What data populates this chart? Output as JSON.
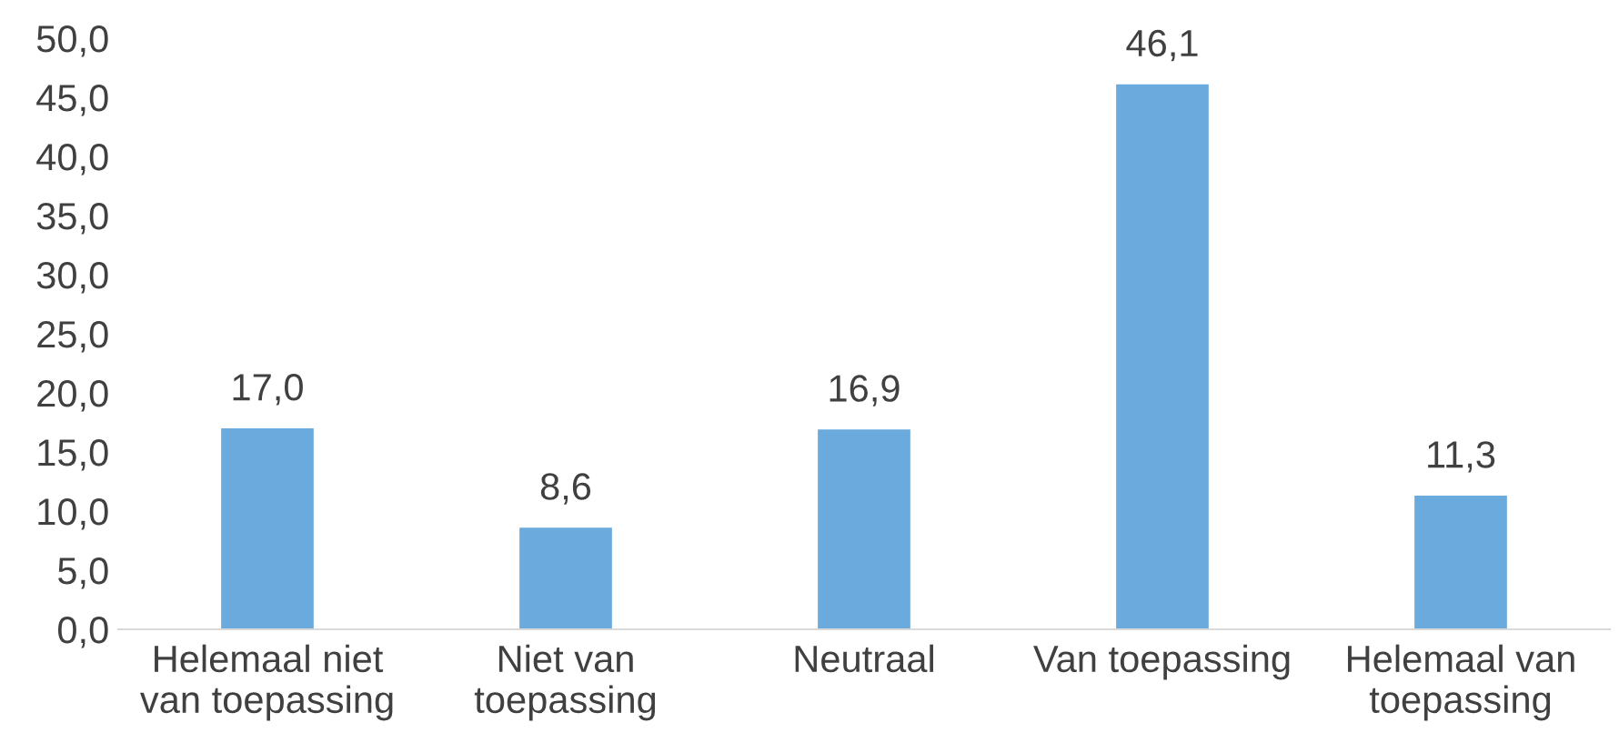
{
  "chart_data": {
    "type": "bar",
    "categories": [
      "Helemaal niet van toepassing",
      "Niet van toepassing",
      "Neutraal",
      "Van toepassing",
      "Helemaal van toepassing"
    ],
    "values": [
      17.0,
      8.6,
      16.9,
      46.1,
      11.3
    ],
    "value_labels": [
      "17,0",
      "8,6",
      "16,9",
      "46,1",
      "11,3"
    ],
    "color": "#6aaadd",
    "ylim": [
      0,
      50
    ],
    "yticks": [
      {
        "value": 0,
        "label": "0,0"
      },
      {
        "value": 5,
        "label": "5,0"
      },
      {
        "value": 10,
        "label": "10,0"
      },
      {
        "value": 15,
        "label": "15,0"
      },
      {
        "value": 20,
        "label": "20,0"
      },
      {
        "value": 25,
        "label": "25,0"
      },
      {
        "value": 30,
        "label": "30,0"
      },
      {
        "value": 35,
        "label": "35,0"
      },
      {
        "value": 40,
        "label": "40,0"
      },
      {
        "value": 45,
        "label": "45,0"
      },
      {
        "value": 50,
        "label": "50,0"
      }
    ],
    "grid": false,
    "legend": false
  }
}
